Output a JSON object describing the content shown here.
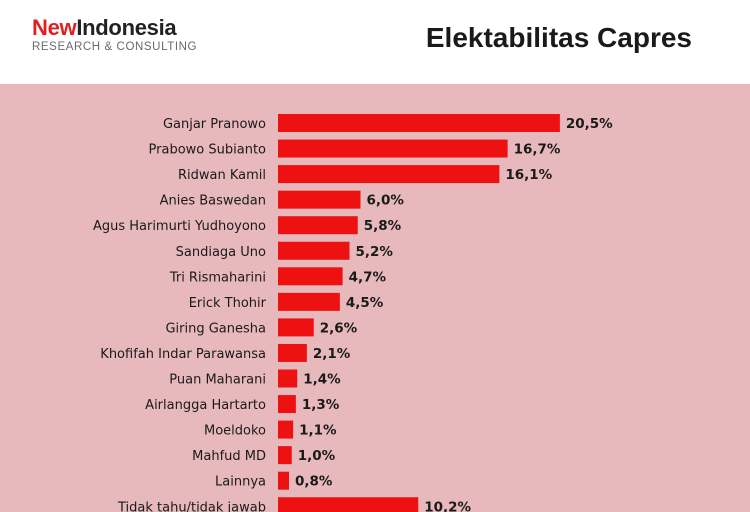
{
  "brand": {
    "name_part1": "New",
    "name_part2": "Indonesia",
    "tagline": "RESEARCH & CONSULTING"
  },
  "colors": {
    "panel_bg": "#e8b9bc",
    "bar": "#ee1111",
    "brand_red": "#e02020",
    "text": "#1a1a1a"
  },
  "chart_data": {
    "type": "bar",
    "orientation": "horizontal",
    "title": "Elektabilitas Capres",
    "xlabel": "",
    "ylabel": "",
    "unit": "%",
    "categories": [
      "Ganjar Pranowo",
      "Prabowo Subianto",
      "Ridwan Kamil",
      "Anies Baswedan",
      "Agus Harimurti Yudhoyono",
      "Sandiaga Uno",
      "Tri Rismaharini",
      "Erick Thohir",
      "Giring Ganesha",
      "Khofifah Indar Parawansa",
      "Puan Maharani",
      "Airlangga Hartarto",
      "Moeldoko",
      "Mahfud MD",
      "Lainnya",
      "Tidak tahu/tidak jawab"
    ],
    "values": [
      20.5,
      16.7,
      16.1,
      6.0,
      5.8,
      5.2,
      4.7,
      4.5,
      2.6,
      2.1,
      1.4,
      1.3,
      1.1,
      1.0,
      0.8,
      10.2
    ],
    "data_labels": [
      "20,5%",
      "16,7%",
      "16,1%",
      "6,0%",
      "5,8%",
      "5,2%",
      "4,7%",
      "4,5%",
      "2,6%",
      "2,1%",
      "1,4%",
      "1,3%",
      "1,1%",
      "1,0%",
      "0,8%",
      "10,2%"
    ],
    "grid": false,
    "legend": "none"
  }
}
